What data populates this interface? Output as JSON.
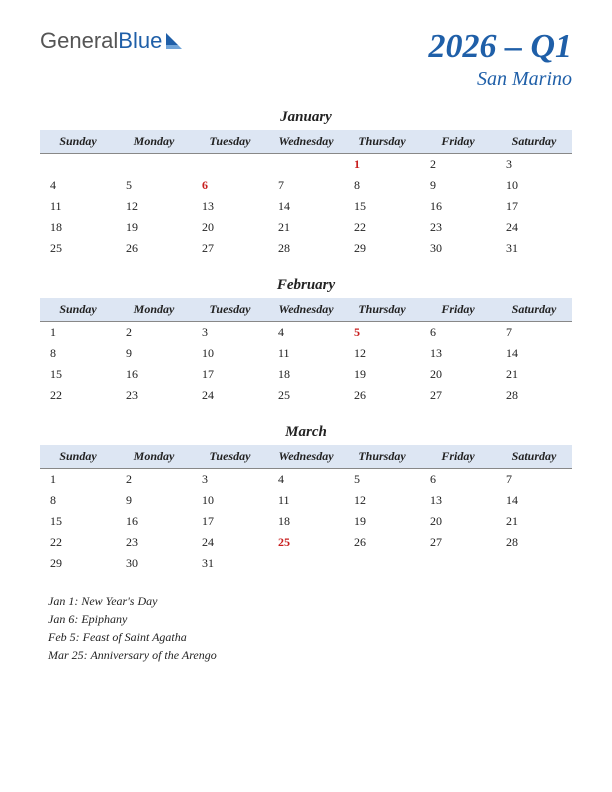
{
  "logo": {
    "part1": "General",
    "part2": "Blue"
  },
  "title": {
    "main": "2026 – Q1",
    "sub": "San Marino"
  },
  "colors": {
    "header_bg": "#dde6f3",
    "accent": "#1f5fa8",
    "holiday": "#c81e1e",
    "text": "#222222",
    "background": "#ffffff"
  },
  "day_headers": [
    "Sunday",
    "Monday",
    "Tuesday",
    "Wednesday",
    "Thursday",
    "Friday",
    "Saturday"
  ],
  "months": [
    {
      "name": "January",
      "weeks": [
        [
          "",
          "",
          "",
          "",
          {
            "d": "1",
            "h": true
          },
          "2",
          "3"
        ],
        [
          "4",
          "5",
          {
            "d": "6",
            "h": true
          },
          "7",
          "8",
          "9",
          "10"
        ],
        [
          "11",
          "12",
          "13",
          "14",
          "15",
          "16",
          "17"
        ],
        [
          "18",
          "19",
          "20",
          "21",
          "22",
          "23",
          "24"
        ],
        [
          "25",
          "26",
          "27",
          "28",
          "29",
          "30",
          "31"
        ]
      ]
    },
    {
      "name": "February",
      "weeks": [
        [
          "1",
          "2",
          "3",
          "4",
          {
            "d": "5",
            "h": true
          },
          "6",
          "7"
        ],
        [
          "8",
          "9",
          "10",
          "11",
          "12",
          "13",
          "14"
        ],
        [
          "15",
          "16",
          "17",
          "18",
          "19",
          "20",
          "21"
        ],
        [
          "22",
          "23",
          "24",
          "25",
          "26",
          "27",
          "28"
        ]
      ]
    },
    {
      "name": "March",
      "weeks": [
        [
          "1",
          "2",
          "3",
          "4",
          "5",
          "6",
          "7"
        ],
        [
          "8",
          "9",
          "10",
          "11",
          "12",
          "13",
          "14"
        ],
        [
          "15",
          "16",
          "17",
          "18",
          "19",
          "20",
          "21"
        ],
        [
          "22",
          "23",
          "24",
          {
            "d": "25",
            "h": true
          },
          "26",
          "27",
          "28"
        ],
        [
          "29",
          "30",
          "31",
          "",
          "",
          "",
          ""
        ]
      ]
    }
  ],
  "holidays": [
    "Jan 1: New Year's Day",
    "Jan 6: Epiphany",
    "Feb 5: Feast of Saint Agatha",
    "Mar 25: Anniversary of the Arengo"
  ]
}
